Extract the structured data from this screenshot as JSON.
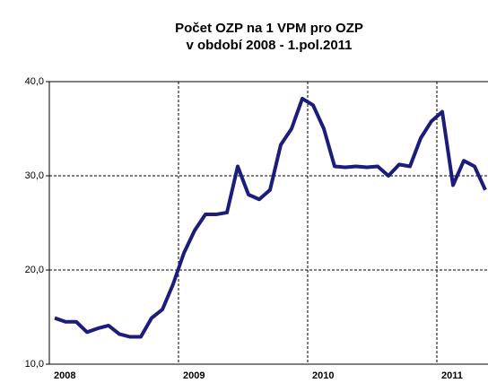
{
  "chart_data": {
    "type": "line",
    "title": [
      "Počet OZP na 1 VPM pro OZP",
      "v období 2008 - 1.pol.2011"
    ],
    "categories": [
      "2008",
      null,
      null,
      null,
      null,
      null,
      null,
      null,
      null,
      null,
      null,
      null,
      "2009",
      null,
      null,
      null,
      null,
      null,
      null,
      null,
      null,
      null,
      null,
      null,
      "2010",
      null,
      null,
      null,
      null,
      null,
      null,
      null,
      null,
      null,
      null,
      null,
      "2011",
      null,
      null,
      null,
      null
    ],
    "values": [
      14.9,
      14.5,
      14.5,
      13.4,
      13.8,
      14.1,
      13.2,
      12.9,
      12.9,
      14.9,
      15.8,
      18.5,
      21.8,
      24.2,
      25.9,
      25.9,
      26.1,
      31.0,
      28.0,
      27.5,
      28.5,
      33.3,
      35.0,
      38.2,
      37.5,
      35.0,
      31.0,
      30.9,
      31.0,
      30.9,
      31.0,
      30.0,
      31.2,
      31.0,
      34.0,
      35.8,
      36.8,
      29.0,
      31.6,
      31.0,
      28.5
    ],
    "color": "#1c1c7c",
    "ylim": [
      10,
      40
    ],
    "yticks": [
      {
        "value": 10,
        "label": "10,0"
      },
      {
        "value": 20,
        "label": "20,0"
      },
      {
        "value": 30,
        "label": "30,0"
      },
      {
        "value": 40,
        "label": "40,0"
      }
    ],
    "grid": true
  }
}
